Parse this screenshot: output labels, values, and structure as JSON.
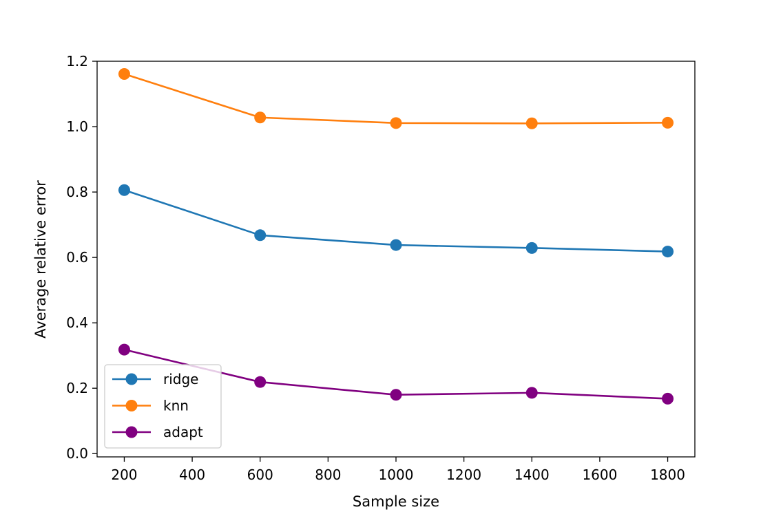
{
  "chart_data": {
    "type": "line",
    "title": "",
    "xlabel": "Sample size",
    "ylabel": "Average relative error",
    "x": [
      200,
      600,
      1000,
      1400,
      1800
    ],
    "xlim": [
      120,
      1880
    ],
    "ylim": [
      -0.01,
      1.2
    ],
    "xticks": [
      200,
      400,
      600,
      800,
      1000,
      1200,
      1400,
      1600,
      1800
    ],
    "yticks": [
      "0.0",
      "0.2",
      "0.4",
      "0.6",
      "0.8",
      "1.0",
      "1.2"
    ],
    "grid": false,
    "legend_position": "lower-left",
    "series": [
      {
        "name": "ridge",
        "color": "#1f77b4",
        "values": [
          0.806,
          0.668,
          0.638,
          0.629,
          0.618
        ]
      },
      {
        "name": "knn",
        "color": "#ff7f0e",
        "values": [
          1.161,
          1.028,
          1.011,
          1.01,
          1.012
        ]
      },
      {
        "name": "adapt",
        "color": "#800080",
        "values": [
          0.318,
          0.219,
          0.18,
          0.186,
          0.168
        ]
      }
    ]
  }
}
